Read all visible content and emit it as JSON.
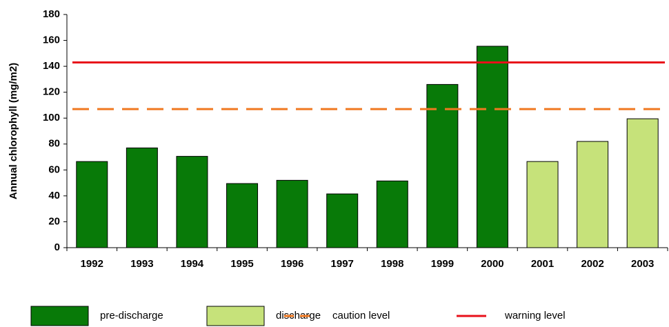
{
  "chart_data": {
    "type": "bar",
    "y_label": "Annual chlorophyll (mg/m2)",
    "categories": [
      "1992",
      "1993",
      "1994",
      "1995",
      "1996",
      "1997",
      "1998",
      "1999",
      "2000",
      "2001",
      "2002",
      "2003"
    ],
    "series": [
      {
        "name": "pre-discharge",
        "type": "bar",
        "color": "#087a08",
        "values": [
          66.5,
          77,
          70.5,
          49.5,
          52,
          41.5,
          51.5,
          126,
          155.5,
          null,
          null,
          null
        ]
      },
      {
        "name": "discharge",
        "type": "bar",
        "color": "#c6e27a",
        "values": [
          null,
          null,
          null,
          null,
          null,
          null,
          null,
          null,
          null,
          66.5,
          82,
          99.5
        ]
      },
      {
        "name": "caution level",
        "type": "line",
        "dashed": true,
        "color": "#f07820",
        "values": [
          107,
          107,
          107,
          107,
          107,
          107,
          107,
          107,
          107,
          107,
          107,
          107
        ]
      },
      {
        "name": "warning level",
        "type": "line",
        "dashed": false,
        "color": "#e8101a",
        "values": [
          143,
          143,
          143,
          143,
          143,
          143,
          143,
          143,
          143,
          143,
          143,
          143
        ]
      }
    ],
    "ylim": [
      0,
      180
    ],
    "yticks": [
      0,
      20,
      40,
      60,
      80,
      100,
      120,
      140,
      160,
      180
    ],
    "grid": false
  }
}
